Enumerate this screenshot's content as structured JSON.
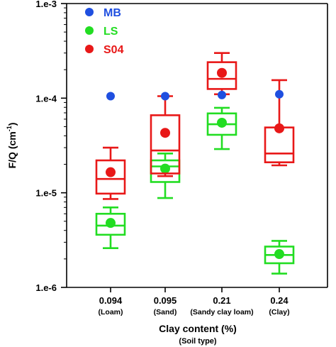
{
  "chart_data": {
    "type": "box",
    "title": "",
    "xlabel": "Clay content (%)",
    "xlabel2": "(Soil type)",
    "ylabel": "F/Q (cm",
    "ylabel_sup": "-1",
    "ylabel_end": ")",
    "yscale": "log",
    "ylim": [
      1e-06,
      0.001
    ],
    "y_ticks": [
      1e-06,
      1e-05,
      0.0001,
      0.001
    ],
    "y_tick_labels": [
      "1.e-6",
      "1.e-5",
      "1.e-4",
      "1.e-3"
    ],
    "categories": [
      "0.094",
      "0.095",
      "0.21",
      "0.24"
    ],
    "category_sublabels": [
      "(Loam)",
      "(Sand)",
      "(Sandy clay loam)",
      "(Clay)"
    ],
    "legend_position": "top-left",
    "series": [
      {
        "name": "MB",
        "color": "#1f4fe0",
        "marker": "point",
        "values": [
          0.000105,
          0.000105,
          0.000108,
          0.00011
        ]
      },
      {
        "name": "LS",
        "color": "#22dd22",
        "marker": "box",
        "boxes": [
          {
            "whisker_low": 2.6e-06,
            "q1": 3.6e-06,
            "median": 4.5e-06,
            "q3": 6e-06,
            "whisker_high": 7e-06,
            "mean": 4.8e-06
          },
          {
            "whisker_low": 8.8e-06,
            "q1": 1.3e-05,
            "median": 1.9e-05,
            "q3": 2.2e-05,
            "whisker_high": 2.6e-05,
            "mean": 1.8e-05
          },
          {
            "whisker_low": 2.9e-05,
            "q1": 4.1e-05,
            "median": 5.3e-05,
            "q3": 6.9e-05,
            "whisker_high": 7.9e-05,
            "mean": 5.5e-05
          },
          {
            "whisker_low": 1.4e-06,
            "q1": 1.8e-06,
            "median": 2.2e-06,
            "q3": 2.7e-06,
            "whisker_high": 3.1e-06,
            "mean": 2.25e-06
          }
        ]
      },
      {
        "name": "S04",
        "color": "#e81818",
        "marker": "box",
        "boxes": [
          {
            "whisker_low": 8.6e-06,
            "q1": 9.8e-06,
            "median": 1.4e-05,
            "q3": 2.2e-05,
            "whisker_high": 3e-05,
            "mean": 1.65e-05
          },
          {
            "whisker_low": 1.5e-05,
            "q1": 1.6e-05,
            "median": 2.8e-05,
            "q3": 6.6e-05,
            "whisker_high": 0.000105,
            "mean": 4.3e-05
          },
          {
            "whisker_low": 0.00011,
            "q1": 0.000125,
            "median": 0.00016,
            "q3": 0.00024,
            "whisker_high": 0.0003,
            "mean": 0.000185
          },
          {
            "whisker_low": 1.95e-05,
            "q1": 2.1e-05,
            "median": 2.6e-05,
            "q3": 4.9e-05,
            "whisker_high": 0.000155,
            "mean": 4.8e-05
          }
        ]
      }
    ]
  }
}
